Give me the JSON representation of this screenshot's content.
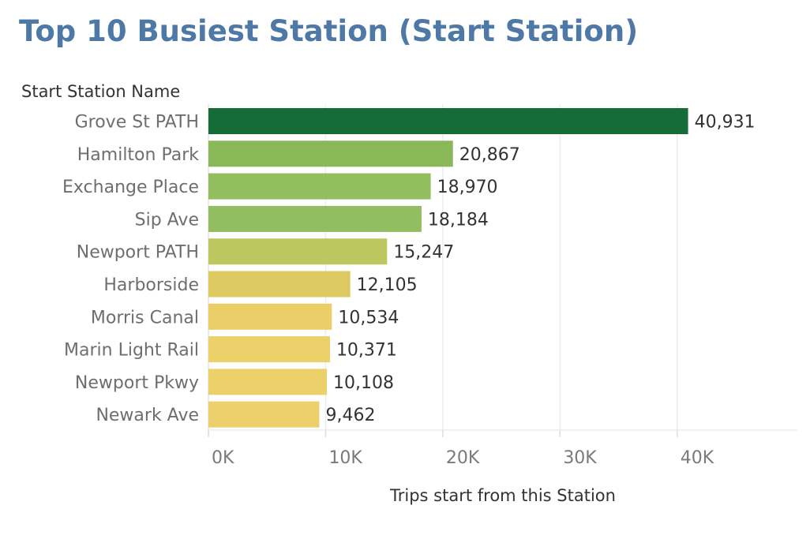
{
  "title": "Top 10 Busiest Station (Start Station)",
  "chart_data": {
    "type": "bar",
    "orientation": "horizontal",
    "row_header": "Start Station Name",
    "xlabel": "Trips start from this Station",
    "xlim": [
      0,
      50000
    ],
    "xticks": [
      0,
      10000,
      20000,
      30000,
      40000
    ],
    "xtick_labels": [
      "0K",
      "10K",
      "20K",
      "30K",
      "40K"
    ],
    "grid": "vertical",
    "categories": [
      "Grove St PATH",
      "Hamilton Park",
      "Exchange Place",
      "Sip Ave",
      "Newport PATH",
      "Harborside",
      "Morris Canal",
      "Marin Light Rail",
      "Newport Pkwy",
      "Newark Ave"
    ],
    "values": [
      40931,
      20867,
      18970,
      18184,
      15247,
      12105,
      10534,
      10371,
      10108,
      9462
    ],
    "value_labels": [
      "40,931",
      "20,867",
      "18,970",
      "18,184",
      "15,247",
      "12,105",
      "10,534",
      "10,371",
      "10,108",
      "9,462"
    ],
    "colors": [
      "#166c37",
      "#88b858",
      "#92be5f",
      "#93bd61",
      "#bdc75f",
      "#dcc960",
      "#ecce68",
      "#ecd069",
      "#ecd06a",
      "#ecd06b"
    ]
  }
}
